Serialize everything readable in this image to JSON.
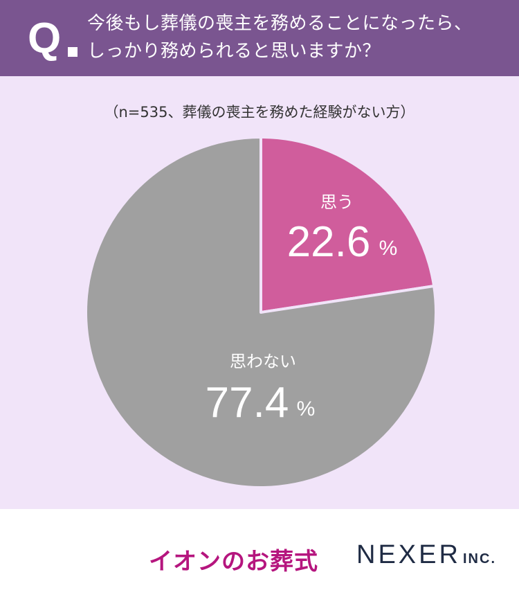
{
  "question": {
    "mark": "Q",
    "line1": "今後もし葬儀の喪主を務めることになったら、",
    "line2": "しっかり務められると思いますか？"
  },
  "note": "（n=535、葬儀の喪主を務めた経験がない方）",
  "chart_data": {
    "type": "pie",
    "slices": [
      {
        "label": "思う",
        "value": 22.6,
        "display": "22.6",
        "unit": "%",
        "color": "#d05d9c"
      },
      {
        "label": "思わない",
        "value": 77.4,
        "display": "77.4",
        "unit": "%",
        "color": "#a0a0a0"
      }
    ]
  },
  "footer": {
    "brand": "イオンのお葬式",
    "company": "NEXER",
    "company_suffix": "INC."
  }
}
